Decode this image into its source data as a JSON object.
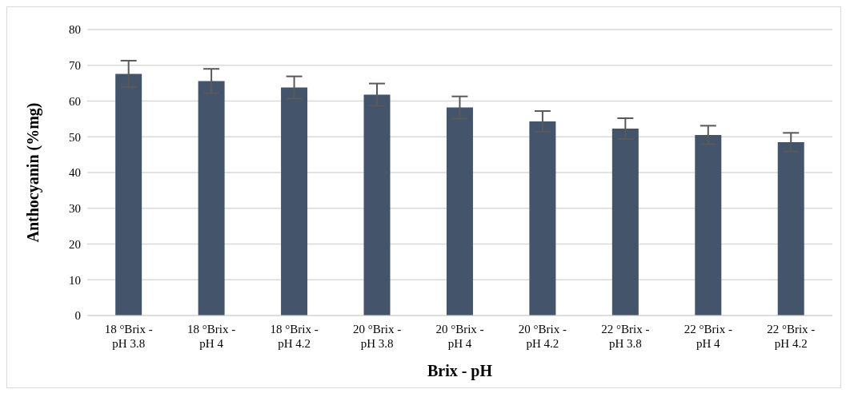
{
  "chart_data": {
    "type": "bar",
    "xlabel": "Brix - pH",
    "ylabel": "Anthocyanin (%mg)",
    "categories": [
      "18 °Brix - pH 3.8",
      "18 °Brix - pH 4",
      "18 °Brix - pH 4.2",
      "20 °Brix - pH 3.8",
      "20 °Brix - pH 4",
      "20 °Brix - pH 4.2",
      "22 °Brix - pH 3.8",
      "22 °Brix - pH 4",
      "22 °Brix - pH 4.2"
    ],
    "values": [
      67.6,
      65.6,
      63.8,
      61.8,
      58.2,
      54.3,
      52.3,
      50.5,
      48.5
    ],
    "errors": [
      3.7,
      3.4,
      3.1,
      3.1,
      3.1,
      2.9,
      2.9,
      2.6,
      2.6
    ],
    "color": "#44546a",
    "ylim": [
      0,
      80
    ],
    "yticks": [
      0,
      10,
      20,
      30,
      40,
      50,
      60,
      70,
      80
    ],
    "grid": "y",
    "legend": false
  }
}
